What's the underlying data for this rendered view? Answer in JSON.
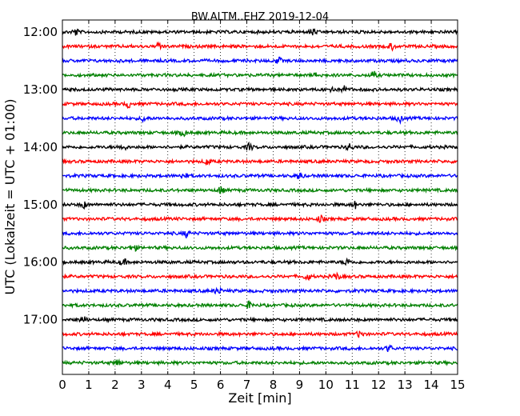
{
  "chart_data": {
    "type": "line",
    "title": "BW.ALTM..EHZ 2019-12-04",
    "xlabel": "Zeit  [min]",
    "ylabel": "UTC (Lokalzeit = UTC + 01:00)",
    "xlim": [
      0,
      15
    ],
    "x_ticks": [
      "0",
      "1",
      "2",
      "3",
      "4",
      "5",
      "6",
      "7",
      "8",
      "9",
      "10",
      "11",
      "12",
      "13",
      "14",
      "15"
    ],
    "y_ticks": [
      "12:00",
      "13:00",
      "14:00",
      "15:00",
      "16:00",
      "17:00"
    ],
    "y_tick_rows": [
      0,
      4,
      8,
      12,
      16,
      20
    ],
    "grid": "vertical-dotted",
    "row_interval_min": 15,
    "color_cycle": [
      "#000000",
      "#ff0000",
      "#0000ff",
      "#008000"
    ],
    "traces": [
      {
        "start": "12:00",
        "events_min": [
          0.5,
          9.5
        ]
      },
      {
        "start": "12:15",
        "events_min": [
          3.7,
          12.5
        ]
      },
      {
        "start": "12:30",
        "events_min": [
          8.2
        ]
      },
      {
        "start": "12:45",
        "events_min": [
          9.7,
          11.8
        ]
      },
      {
        "start": "13:00",
        "events_min": [
          10.2,
          10.7
        ]
      },
      {
        "start": "13:15",
        "events_min": [
          2.5
        ]
      },
      {
        "start": "13:30",
        "events_min": [
          3.1,
          12.8
        ]
      },
      {
        "start": "13:45",
        "events_min": [
          4.6
        ]
      },
      {
        "start": "14:00",
        "events_min": [
          2.3,
          7.1,
          10.9
        ]
      },
      {
        "start": "14:15",
        "events_min": [
          5.5
        ]
      },
      {
        "start": "14:30",
        "events_min": [
          4.6,
          9.0
        ]
      },
      {
        "start": "14:45",
        "events_min": [
          6.0
        ]
      },
      {
        "start": "15:00",
        "events_min": [
          0.8,
          11.1
        ]
      },
      {
        "start": "15:15",
        "events_min": [
          9.8
        ]
      },
      {
        "start": "15:30",
        "events_min": [
          4.7
        ]
      },
      {
        "start": "15:45",
        "events_min": [
          2.7
        ]
      },
      {
        "start": "16:00",
        "events_min": [
          2.3,
          10.8
        ]
      },
      {
        "start": "16:15",
        "events_min": [
          9.3,
          10.4
        ]
      },
      {
        "start": "16:30",
        "events_min": [
          5.9
        ]
      },
      {
        "start": "16:45",
        "events_min": [
          7.1
        ]
      },
      {
        "start": "17:00",
        "events_min": [
          0.8
        ]
      },
      {
        "start": "17:15",
        "events_min": [
          11.3
        ]
      },
      {
        "start": "17:30",
        "events_min": [
          12.4
        ]
      },
      {
        "start": "17:45",
        "events_min": [
          2.1
        ]
      }
    ]
  }
}
